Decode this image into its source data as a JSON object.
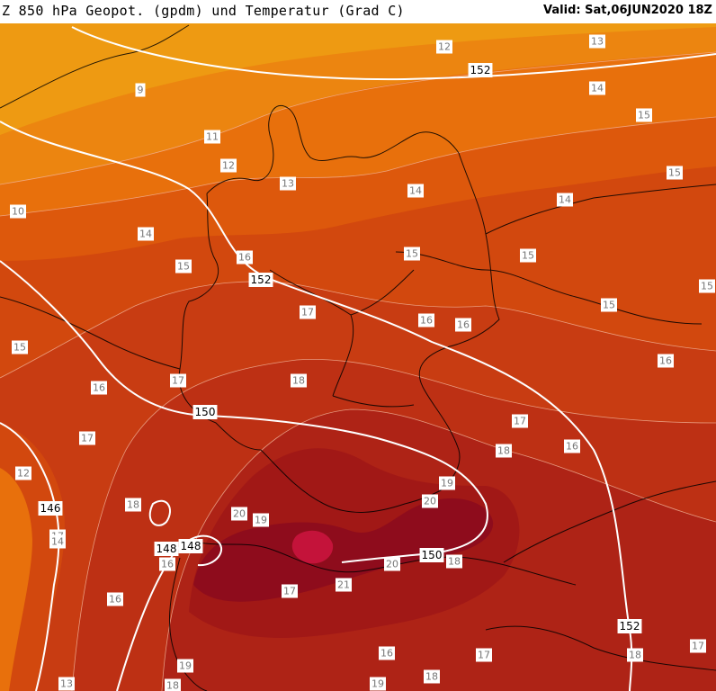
{
  "header": {
    "title": "Z 850 hPa Geopot. (gpdm) und Temperatur (Grad C)",
    "valid": "Valid: Sat,06JUN2020 18Z"
  },
  "colors": {
    "t9": "#ee9a12",
    "t11": "#ec8510",
    "t13": "#e8700c",
    "t14": "#dd580c",
    "t15": "#d2480e",
    "t16": "#c83c12",
    "t17": "#bd3014",
    "t18": "#ae2316",
    "t19": "#a11816",
    "t20": "#8e0c1c",
    "t21": "#c4133a",
    "border": "#000000",
    "isohypse": "#ffffff"
  },
  "temperature_labels": [
    {
      "text": "12"
    },
    {
      "text": "13"
    },
    {
      "text": "14"
    },
    {
      "text": "15"
    },
    {
      "text": "9"
    },
    {
      "text": "11"
    },
    {
      "text": "12"
    },
    {
      "text": "13"
    },
    {
      "text": "14"
    },
    {
      "text": "15"
    },
    {
      "text": "14"
    },
    {
      "text": "10"
    },
    {
      "text": "14"
    },
    {
      "text": "15"
    },
    {
      "text": "16"
    },
    {
      "text": "15"
    },
    {
      "text": "15"
    },
    {
      "text": "15"
    },
    {
      "text": "17"
    },
    {
      "text": "16"
    },
    {
      "text": "16"
    },
    {
      "text": "15"
    },
    {
      "text": "15"
    },
    {
      "text": "16"
    },
    {
      "text": "17"
    },
    {
      "text": "18"
    },
    {
      "text": "16"
    },
    {
      "text": "17"
    },
    {
      "text": "17"
    },
    {
      "text": "18"
    },
    {
      "text": "16"
    },
    {
      "text": "12"
    },
    {
      "text": "19"
    },
    {
      "text": "18"
    },
    {
      "text": "20"
    },
    {
      "text": "20"
    },
    {
      "text": "19"
    },
    {
      "text": "17"
    },
    {
      "text": "14"
    },
    {
      "text": "16"
    },
    {
      "text": "20"
    },
    {
      "text": "18"
    },
    {
      "text": "17"
    },
    {
      "text": "21"
    },
    {
      "text": "16"
    },
    {
      "text": "16"
    },
    {
      "text": "17"
    },
    {
      "text": "18"
    },
    {
      "text": "17"
    },
    {
      "text": "19"
    },
    {
      "text": "18"
    },
    {
      "text": "19"
    },
    {
      "text": "18"
    },
    {
      "text": "13"
    }
  ],
  "geopotential_labels": [
    {
      "text": "152"
    },
    {
      "text": "152"
    },
    {
      "text": "150"
    },
    {
      "text": "146"
    },
    {
      "text": "148"
    },
    {
      "text": "148"
    },
    {
      "text": "150"
    },
    {
      "text": "152"
    }
  ]
}
